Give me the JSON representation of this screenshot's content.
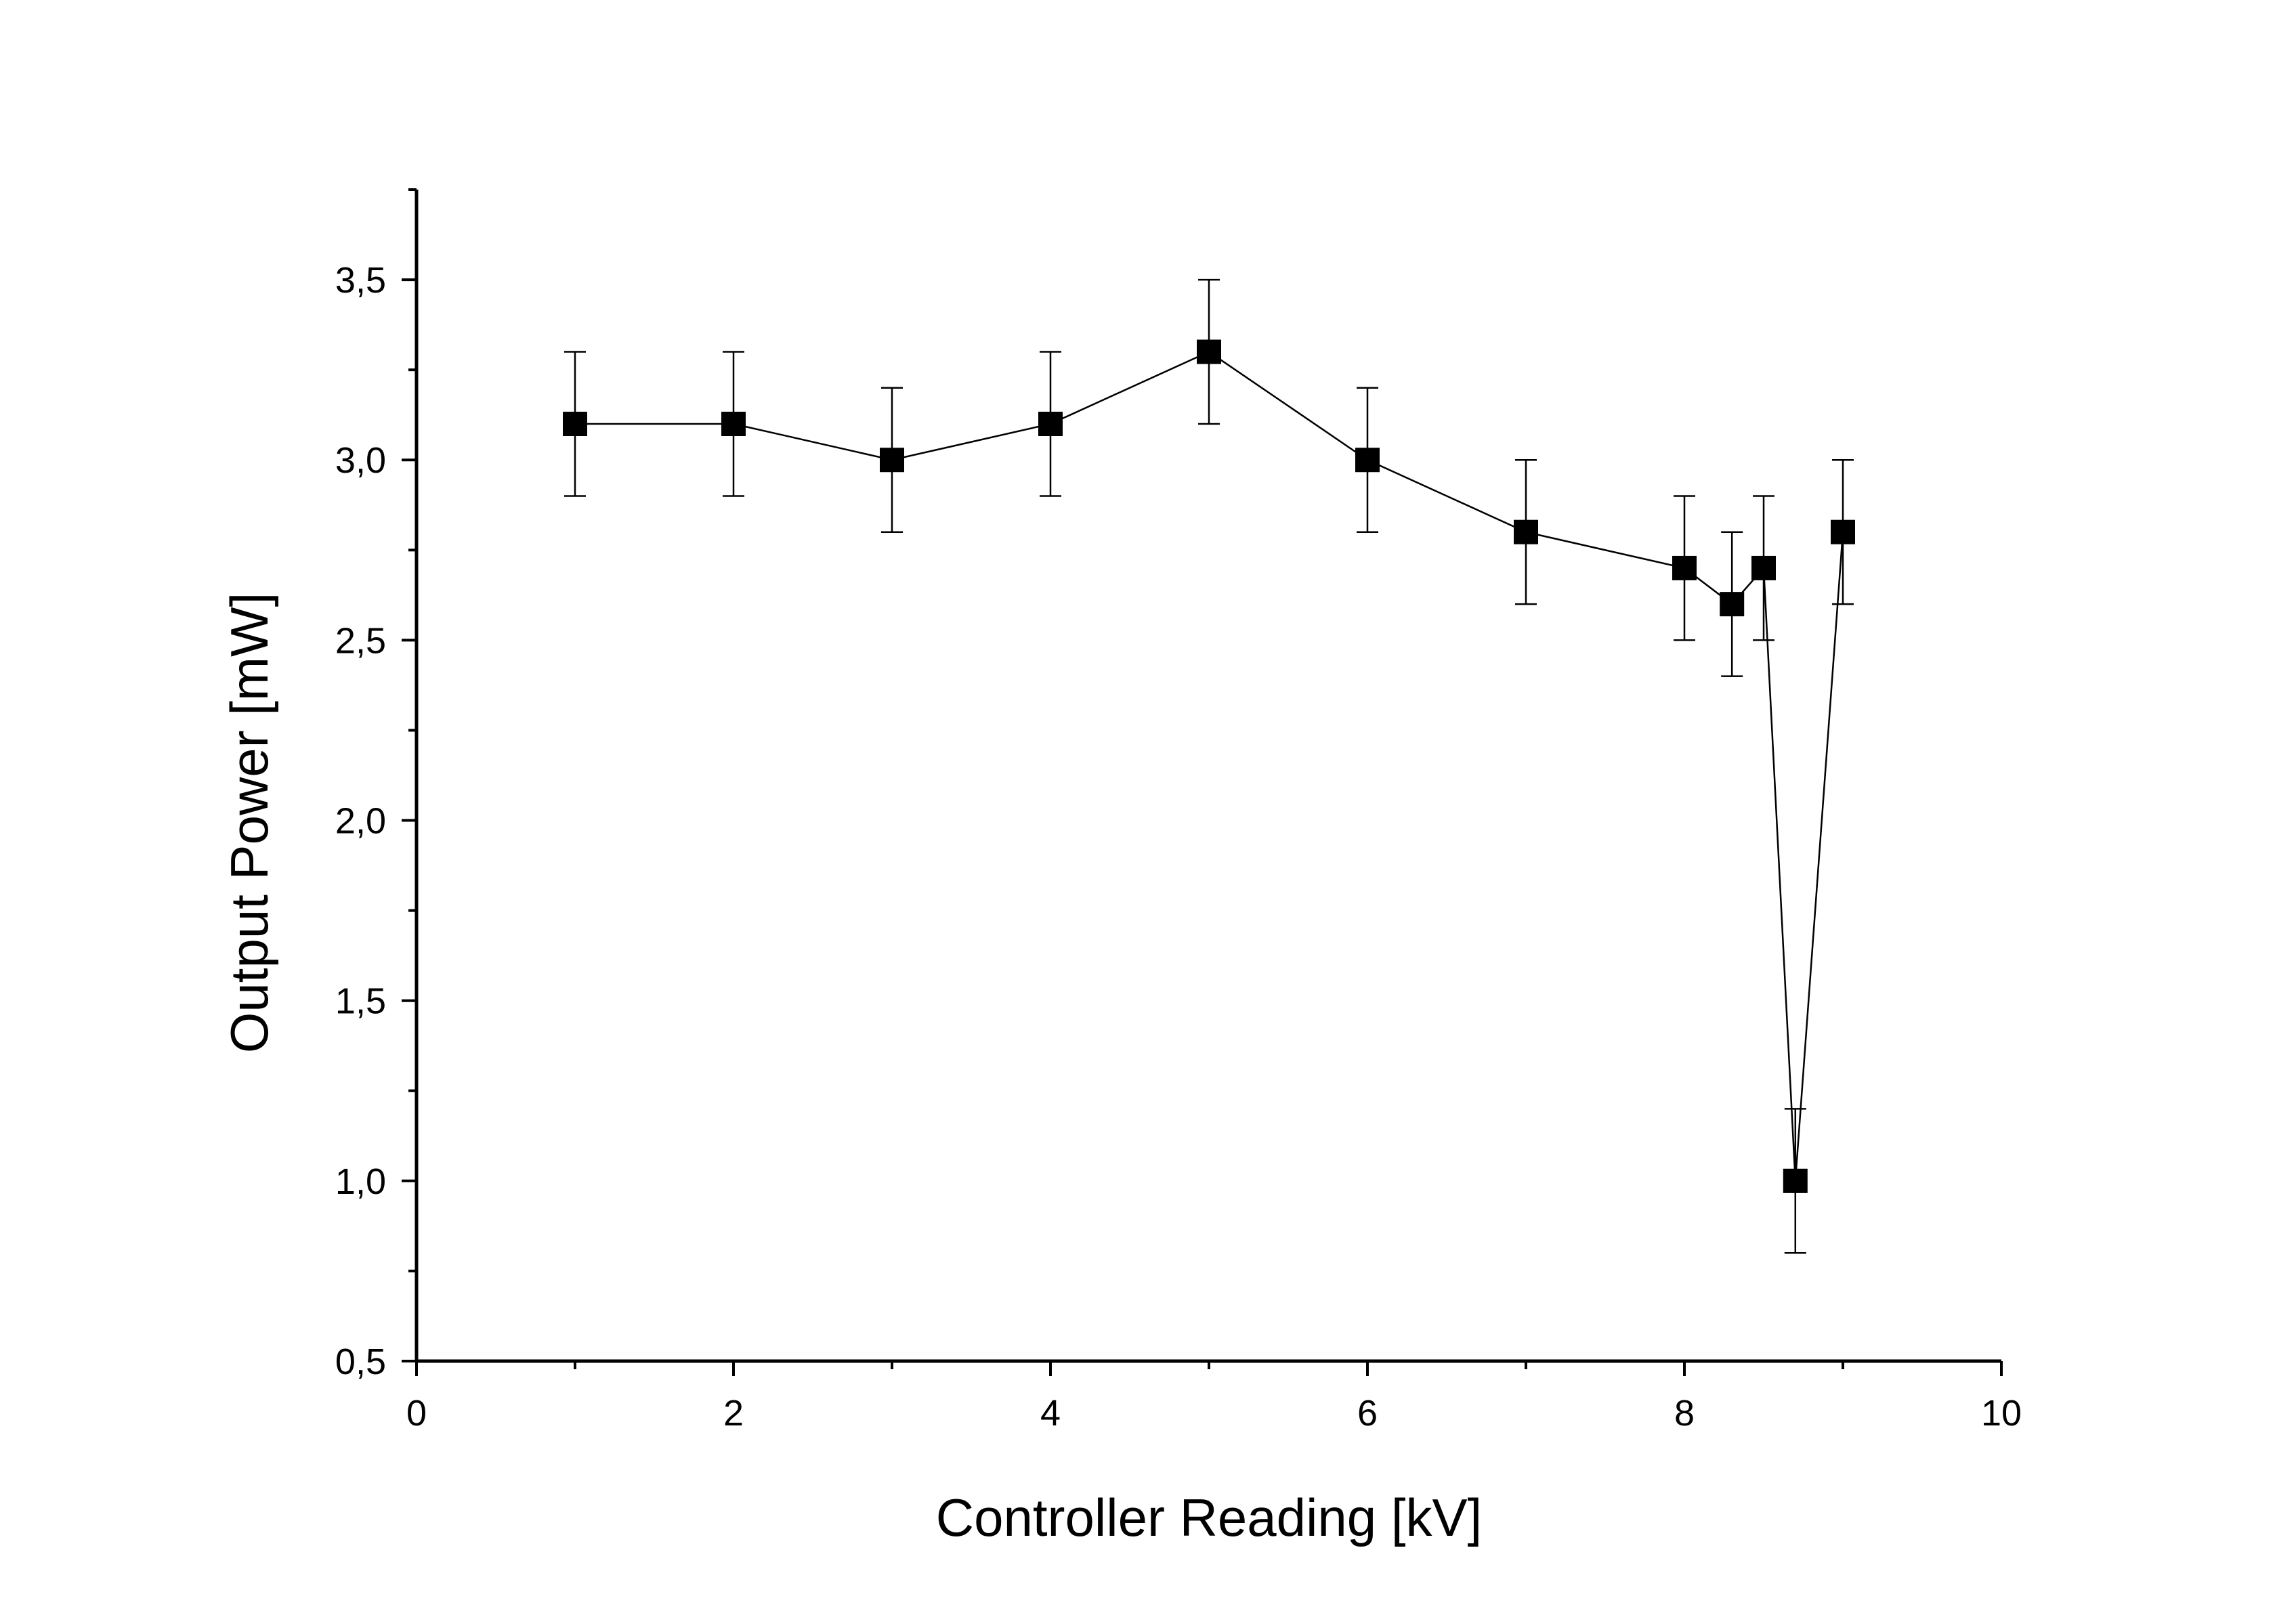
{
  "chart_data": {
    "type": "scatter",
    "title": "",
    "xlabel": "Controller Reading [kV]",
    "ylabel": "Output Power [mW]",
    "xlim": [
      0,
      10
    ],
    "ylim": [
      0.5,
      3.75
    ],
    "x_ticks": [
      0,
      2,
      4,
      6,
      8,
      10
    ],
    "x_tick_labels": [
      "0",
      "2",
      "4",
      "6",
      "8",
      "10"
    ],
    "y_ticks": [
      0.5,
      1.0,
      1.5,
      2.0,
      2.5,
      3.0,
      3.5
    ],
    "y_tick_labels": [
      "0,5",
      "1,0",
      "1,5",
      "2,0",
      "2,5",
      "3,0",
      "3,5"
    ],
    "grid": false,
    "legend": "none",
    "marker": "square",
    "connected": true,
    "color": "#000000",
    "series": [
      {
        "x": [
          1,
          2,
          3,
          4,
          5,
          6,
          7,
          8,
          8.3,
          8.5,
          8.7,
          9
        ],
        "y": [
          3.1,
          3.1,
          3.0,
          3.1,
          3.3,
          3.0,
          2.8,
          2.7,
          2.6,
          2.7,
          1.0,
          2.8
        ],
        "error": [
          0.2,
          0.2,
          0.2,
          0.2,
          0.2,
          0.2,
          0.2,
          0.2,
          0.2,
          0.2,
          0.2,
          0.2
        ]
      }
    ]
  }
}
